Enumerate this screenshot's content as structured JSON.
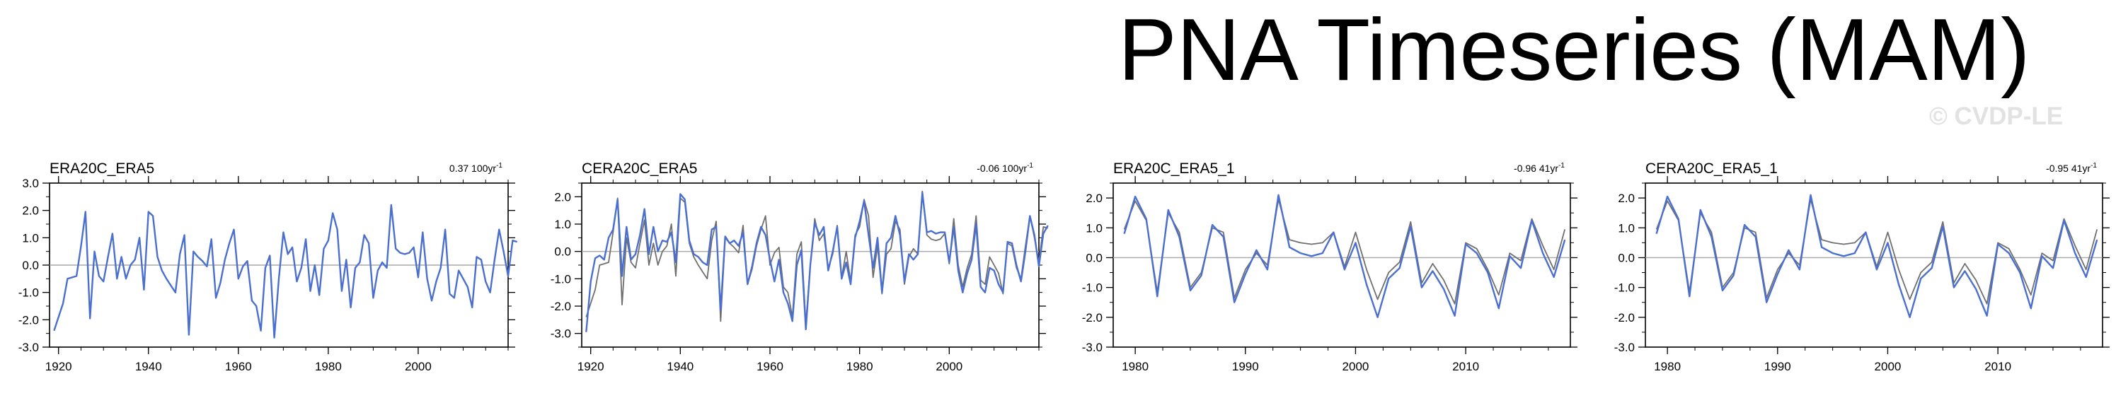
{
  "title": "PNA Timeseries (MAM)",
  "watermark": "© CVDP-LE",
  "colors": {
    "observed": "#4a6fcf",
    "reference": "#6f6f6f",
    "zero_line": "#a8a8a8"
  },
  "chart_data": [
    {
      "type": "line",
      "title": "ERA20C_ERA5",
      "trend_value": "0.37 100yr",
      "trend_exp": "-1",
      "xlim": [
        1918,
        2020
      ],
      "ylim": [
        -3.0,
        3.0
      ],
      "xticks": [
        1920,
        1940,
        1960,
        1980,
        2000
      ],
      "yticks": [
        -3.0,
        -2.0,
        -1.0,
        0.0,
        1.0,
        2.0,
        3.0
      ],
      "ytick_labels": [
        "-3.0",
        "-2.0",
        "-1.0",
        "0.0",
        "1.0",
        "2.0",
        "3.0"
      ],
      "series": [
        {
          "name": "ERA20C_ERA5",
          "color": "#4a6fcf",
          "start_year": 1919,
          "values": [
            -2.4,
            -1.9,
            -1.4,
            -0.5,
            -0.45,
            -0.4,
            0.7,
            1.95,
            -1.95,
            0.5,
            -0.4,
            -0.6,
            0.3,
            1.15,
            -0.5,
            0.3,
            -0.5,
            0.0,
            0.2,
            1.0,
            -0.9,
            1.95,
            1.8,
            0.3,
            -0.2,
            -0.5,
            -0.75,
            -1.0,
            0.4,
            1.1,
            -2.55,
            0.5,
            0.3,
            0.15,
            -0.05,
            0.95,
            -1.2,
            -0.65,
            0.2,
            0.8,
            1.3,
            -0.5,
            -0.05,
            0.15,
            -1.3,
            -1.5,
            -2.4,
            -0.1,
            0.35,
            -2.65,
            -0.5,
            1.2,
            0.4,
            0.65,
            -0.6,
            -0.1,
            0.95,
            -0.95,
            0.0,
            -1.1,
            0.6,
            0.9,
            1.9,
            1.3,
            -0.95,
            0.2,
            -1.55,
            -0.1,
            0.1,
            1.1,
            0.8,
            -1.2,
            -0.2,
            0.1,
            -0.1,
            2.2,
            0.6,
            0.45,
            0.4,
            0.45,
            0.65,
            -0.45,
            1.2,
            -0.5,
            -1.3,
            -0.6,
            -0.1,
            1.3,
            -1.05,
            -1.2,
            -0.2,
            -0.5,
            -0.8,
            -1.55,
            0.3,
            0.2,
            -0.6,
            -1.0,
            0.2,
            1.3,
            0.5,
            -0.4,
            0.9,
            0.85
          ]
        }
      ]
    },
    {
      "type": "line",
      "title": "CERA20C_ERA5",
      "trend_value": "-0.06 100yr",
      "trend_exp": "-1",
      "xlim": [
        1918,
        2020
      ],
      "ylim": [
        -3.5,
        2.5
      ],
      "xticks": [
        1920,
        1940,
        1960,
        1980,
        2000
      ],
      "yticks": [
        -3.0,
        -2.0,
        -1.0,
        0.0,
        1.0,
        2.0
      ],
      "ytick_labels": [
        "-3.0",
        "-2.0",
        "-1.0",
        "0.0",
        "1.0",
        "2.0"
      ],
      "series": [
        {
          "name": "ERA20C_ERA5",
          "color": "#6f6f6f",
          "start_year": 1919,
          "values": [
            -2.4,
            -1.9,
            -1.4,
            -0.5,
            -0.45,
            -0.4,
            0.7,
            1.95,
            -1.95,
            0.5,
            -0.4,
            -0.6,
            0.3,
            1.15,
            -0.5,
            0.3,
            -0.5,
            0.0,
            0.2,
            1.0,
            -0.9,
            1.95,
            1.8,
            0.3,
            -0.2,
            -0.5,
            -0.75,
            -1.0,
            0.4,
            1.1,
            -2.55,
            0.5,
            0.3,
            0.15,
            -0.05,
            0.95,
            -1.2,
            -0.65,
            0.2,
            0.8,
            1.3,
            -0.5,
            -0.05,
            0.15,
            -1.3,
            -1.5,
            -2.4,
            -0.1,
            0.35,
            -2.65,
            -0.5,
            1.2,
            0.4,
            0.65,
            -0.6,
            -0.1,
            0.95,
            -0.95,
            0.0,
            -1.1,
            0.6,
            0.9,
            1.9,
            1.3,
            -0.95,
            0.2,
            -1.55,
            -0.1,
            0.1,
            1.1,
            0.8,
            -1.2,
            -0.2,
            0.1,
            -0.1,
            2.2,
            0.6,
            0.45,
            0.4,
            0.45,
            0.65,
            -0.45,
            1.2,
            -0.5,
            -1.3,
            -0.6,
            -0.1,
            1.3,
            -1.05,
            -1.2,
            -0.2,
            -0.5,
            -0.8,
            -1.55,
            0.3,
            0.2,
            -0.6,
            -1.0,
            0.2,
            1.3,
            0.5,
            -0.4,
            0.9,
            0.85
          ]
        },
        {
          "name": "CERA20C_ERA5",
          "color": "#4a6fcf",
          "start_year": 1919,
          "values": [
            -2.95,
            -1.1,
            -0.25,
            -0.15,
            -0.3,
            0.5,
            0.8,
            1.9,
            -0.9,
            0.9,
            -0.3,
            -0.1,
            0.6,
            1.55,
            -0.1,
            0.9,
            0.0,
            0.4,
            0.35,
            0.7,
            -0.4,
            2.1,
            1.9,
            0.4,
            -0.1,
            -0.2,
            -0.4,
            -0.5,
            0.8,
            0.9,
            -2.15,
            0.55,
            0.3,
            0.4,
            0.2,
            0.7,
            -1.2,
            -0.55,
            0.3,
            0.9,
            0.6,
            -0.3,
            -1.1,
            -0.3,
            -1.5,
            -1.9,
            -2.55,
            -0.5,
            0.05,
            -2.85,
            -0.5,
            1.05,
            0.6,
            0.9,
            -0.7,
            0.0,
            0.9,
            -1.0,
            -0.4,
            -1.2,
            0.5,
            1.1,
            1.85,
            0.6,
            -0.6,
            0.5,
            -1.5,
            0.3,
            0.5,
            1.3,
            0.6,
            -1.1,
            -0.1,
            -0.3,
            -0.1,
            2.15,
            0.7,
            0.75,
            0.65,
            0.7,
            0.7,
            -0.4,
            0.9,
            -0.7,
            -1.5,
            -0.8,
            -0.3,
            1.0,
            -1.3,
            -1.5,
            -0.6,
            -0.7,
            -1.2,
            -1.5,
            0.35,
            0.3,
            -0.5,
            -1.1,
            0.0,
            1.3,
            0.6,
            -0.55,
            0.65,
            0.95
          ]
        }
      ]
    },
    {
      "type": "line",
      "title": "ERA20C_ERA5_1",
      "trend_value": "-0.96 41yr",
      "trend_exp": "-1",
      "xlim": [
        1978,
        2019.5
      ],
      "ylim": [
        -3.0,
        2.5
      ],
      "xticks": [
        1980,
        1990,
        2000,
        2010
      ],
      "yticks": [
        -3.0,
        -2.0,
        -1.0,
        0.0,
        1.0,
        2.0
      ],
      "ytick_labels": [
        "-3.0",
        "-2.0",
        "-1.0",
        "0.0",
        "1.0",
        "2.0"
      ],
      "series": [
        {
          "name": "ERA20C_ERA5",
          "color": "#6f6f6f",
          "start_year": 1979,
          "values": [
            0.95,
            1.9,
            1.25,
            -1.15,
            1.5,
            0.85,
            -1.0,
            -0.5,
            1.0,
            0.85,
            -1.35,
            -0.4,
            0.15,
            -0.25,
            1.95,
            0.6,
            0.5,
            0.45,
            0.5,
            0.85,
            -0.3,
            0.85,
            -0.4,
            -1.4,
            -0.5,
            -0.15,
            1.2,
            -0.85,
            -0.2,
            -0.75,
            -1.55,
            0.5,
            0.3,
            -0.4,
            -1.25,
            0.15,
            -0.1,
            1.3,
            0.4,
            -0.4,
            0.95
          ]
        },
        {
          "name": "ERA20C_ERA5_1",
          "color": "#4a6fcf",
          "start_year": 1979,
          "values": [
            0.8,
            2.05,
            1.3,
            -1.3,
            1.6,
            0.7,
            -1.1,
            -0.6,
            1.1,
            0.7,
            -1.5,
            -0.55,
            0.25,
            -0.4,
            2.1,
            0.35,
            0.15,
            0.05,
            0.15,
            0.85,
            -0.4,
            0.5,
            -0.9,
            -2.0,
            -0.7,
            -0.35,
            1.05,
            -1.0,
            -0.45,
            -1.05,
            -1.95,
            0.45,
            0.15,
            -0.5,
            -1.7,
            0.05,
            -0.35,
            1.25,
            0.15,
            -0.65,
            0.6
          ]
        }
      ]
    },
    {
      "type": "line",
      "title": "CERA20C_ERA5_1",
      "trend_value": "-0.95 41yr",
      "trend_exp": "-1",
      "xlim": [
        1978,
        2019.5
      ],
      "ylim": [
        -3.0,
        2.5
      ],
      "xticks": [
        1980,
        1990,
        2000,
        2010
      ],
      "yticks": [
        -3.0,
        -2.0,
        -1.0,
        0.0,
        1.0,
        2.0
      ],
      "ytick_labels": [
        "-3.0",
        "-2.0",
        "-1.0",
        "0.0",
        "1.0",
        "2.0"
      ],
      "series": [
        {
          "name": "CERA20C_ERA5",
          "color": "#6f6f6f",
          "start_year": 1979,
          "values": [
            0.95,
            1.9,
            1.25,
            -1.15,
            1.5,
            0.85,
            -1.0,
            -0.5,
            1.0,
            0.85,
            -1.35,
            -0.4,
            0.15,
            -0.25,
            1.95,
            0.6,
            0.5,
            0.45,
            0.5,
            0.85,
            -0.3,
            0.85,
            -0.4,
            -1.4,
            -0.5,
            -0.15,
            1.2,
            -0.85,
            -0.2,
            -0.75,
            -1.55,
            0.5,
            0.3,
            -0.4,
            -1.25,
            0.15,
            -0.1,
            1.3,
            0.4,
            -0.4,
            0.95
          ]
        },
        {
          "name": "CERA20C_ERA5_1",
          "color": "#4a6fcf",
          "start_year": 1979,
          "values": [
            0.8,
            2.05,
            1.3,
            -1.3,
            1.6,
            0.7,
            -1.1,
            -0.6,
            1.1,
            0.7,
            -1.5,
            -0.55,
            0.25,
            -0.4,
            2.1,
            0.35,
            0.15,
            0.05,
            0.15,
            0.85,
            -0.4,
            0.5,
            -0.9,
            -2.0,
            -0.7,
            -0.35,
            1.05,
            -1.0,
            -0.45,
            -1.05,
            -1.95,
            0.45,
            0.15,
            -0.5,
            -1.7,
            0.05,
            -0.35,
            1.25,
            0.15,
            -0.65,
            0.6
          ]
        }
      ]
    }
  ]
}
